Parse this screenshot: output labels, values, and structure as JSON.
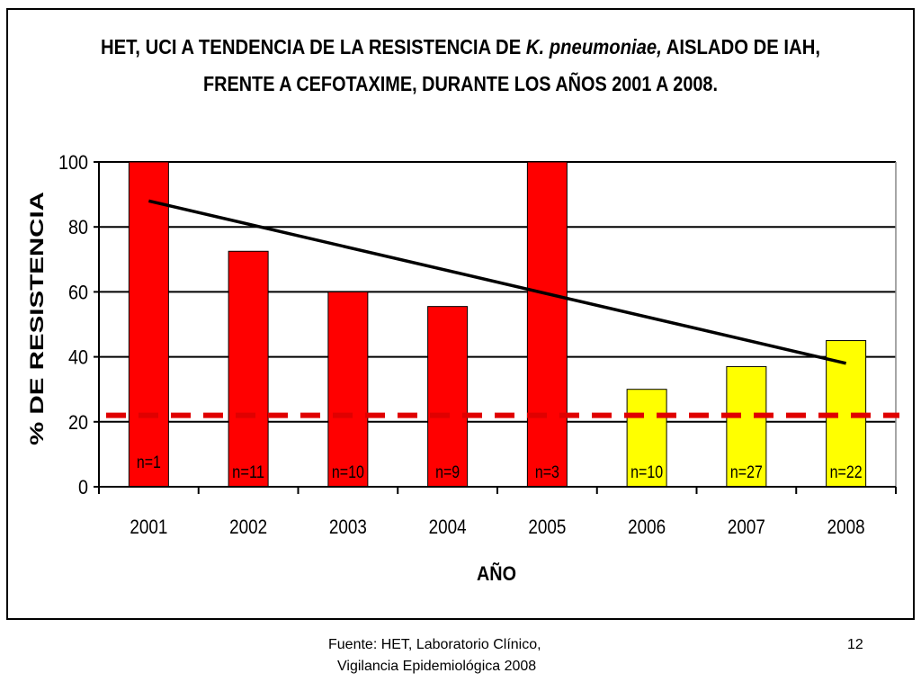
{
  "chart_data": {
    "type": "bar",
    "title_line1": {
      "pre": "HET, UCI A TENDENCIA DE LA RESISTENCIA DE ",
      "italic": "K. pneumoniae,",
      "post": " AISLADO DE IAH,"
    },
    "title_line2": "FRENTE A CEFOTAXIME, DURANTE LOS AÑOS 2001 A 2008.",
    "xlabel": "AÑO",
    "ylabel": "% DE RESISTENCIA",
    "ylim": [
      0,
      100
    ],
    "yticks": [
      "0",
      "20",
      "40",
      "60",
      "80",
      "100"
    ],
    "categories": [
      "2001",
      "2002",
      "2003",
      "2004",
      "2005",
      "2006",
      "2007",
      "2008"
    ],
    "values": [
      100,
      72.5,
      60,
      55.5,
      100,
      30,
      37,
      45
    ],
    "bar_colors": [
      "#ff0000",
      "#ff0000",
      "#ff0000",
      "#ff0000",
      "#ff0000",
      "#ffff00",
      "#ffff00",
      "#ffff00"
    ],
    "n_labels": [
      "n=1",
      "n=11",
      "n=10",
      "n=9",
      "n=3",
      "n=10",
      "n=27",
      "n=22"
    ],
    "trendline": {
      "start": 88,
      "end": 38,
      "color": "#000000"
    },
    "reference_line": {
      "value": 22,
      "color": "#e00000",
      "style": "dashed"
    },
    "grid": true
  },
  "footer": {
    "source_line1": "Fuente: HET, Laboratorio Clínico,",
    "source_line2": "Vigilancia Epidemiológica 2008",
    "page_number": "12"
  }
}
